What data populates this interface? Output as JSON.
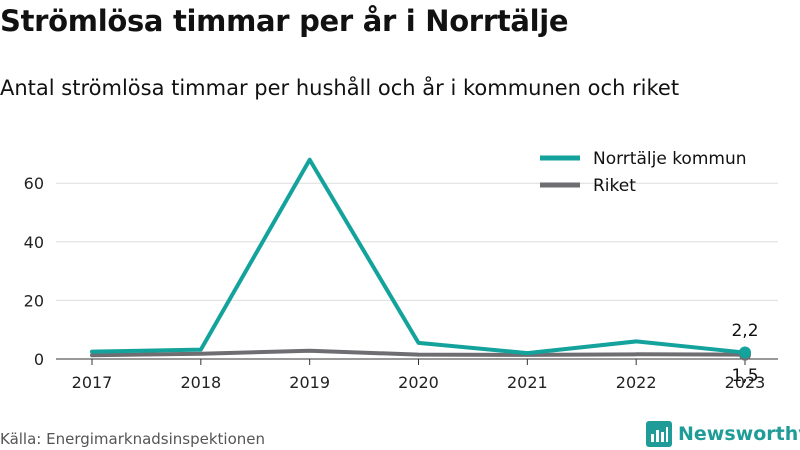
{
  "title": "Strömlösa timmar per år i Norrtälje",
  "subtitle": "Antal strömlösa timmar per hushåll och år i kommunen och riket",
  "source": "Källa: Energimarknadsinspektionen",
  "brand": "Newsworthy",
  "colors": {
    "norrtalje": "#14a39c",
    "riket": "#6e6e72",
    "grid": "#dddddd",
    "brand": "#1f9c98"
  },
  "chart_data": {
    "type": "line",
    "x": [
      "2017",
      "2018",
      "2019",
      "2020",
      "2021",
      "2022",
      "2023"
    ],
    "series": [
      {
        "name": "Norrtälje kommun",
        "values": [
          2.5,
          3.2,
          68,
          5.5,
          2.0,
          6.0,
          2.2
        ]
      },
      {
        "name": "Riket",
        "values": [
          1.3,
          1.8,
          2.8,
          1.5,
          1.4,
          1.6,
          1.5
        ]
      }
    ],
    "yticks": [
      0,
      20,
      40,
      60
    ],
    "ylim": [
      0,
      72
    ],
    "grid": true,
    "legend": "top-right",
    "end_labels": [
      "2,2",
      "1,5"
    ]
  }
}
